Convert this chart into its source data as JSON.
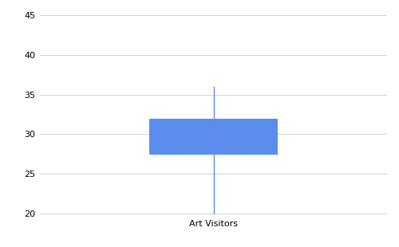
{
  "category": "Art Visitors",
  "whisker_low": 20,
  "q1": 27.5,
  "median": 27.5,
  "q3": 32,
  "whisker_high": 36,
  "box_color": "#5B8DEF",
  "whisker_color": "#5B8DEF",
  "median_color": "#5B8DEF",
  "ylim": [
    19.5,
    46
  ],
  "yticks": [
    20,
    25,
    30,
    35,
    40,
    45
  ],
  "grid_color": "#D3D3D3",
  "background_color": "#FFFFFF",
  "figsize": [
    5.0,
    3.1
  ],
  "dpi": 100
}
